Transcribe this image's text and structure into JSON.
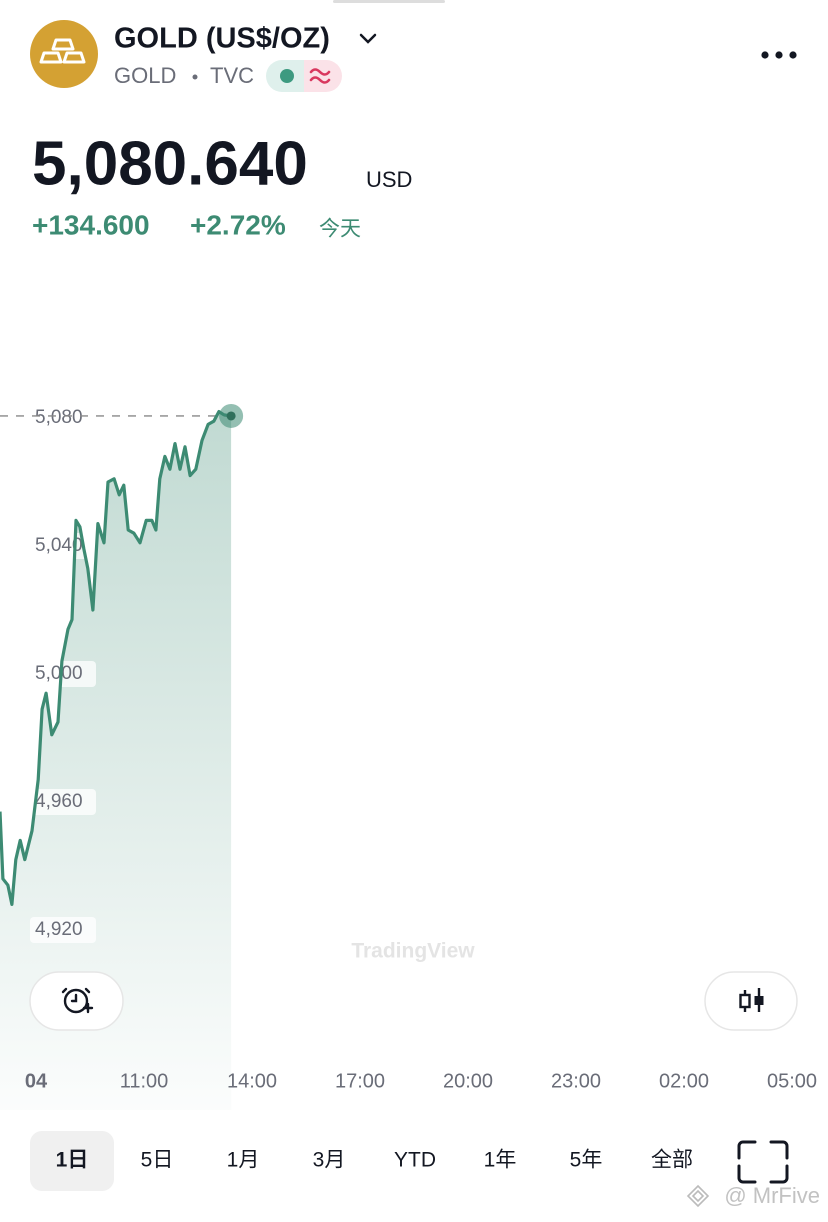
{
  "header": {
    "title": "GOLD (US$/OZ)",
    "symbol": "GOLD",
    "source": "TVC"
  },
  "quote": {
    "price": "5,080.640",
    "currency": "USD",
    "change": "+134.600",
    "change_percent": "+2.72%",
    "period": "今天"
  },
  "chart_data": {
    "type": "line",
    "color": "#3d8b73",
    "x": [
      7,
      7.08,
      7.22,
      7.33,
      7.44,
      7.56,
      7.69,
      7.89,
      8.06,
      8.17,
      8.28,
      8.44,
      8.61,
      8.72,
      8.89,
      9,
      9.11,
      9.22,
      9.33,
      9.44,
      9.58,
      9.72,
      9.89,
      10,
      10.17,
      10.31,
      10.44,
      10.56,
      10.72,
      10.89,
      11.06,
      11.22,
      11.33,
      11.44,
      11.58,
      11.72,
      11.86,
      12,
      12.14,
      12.28,
      12.44,
      12.61,
      12.78,
      12.94,
      13.08,
      13.22,
      13.42
    ],
    "values": [
      4957,
      4936,
      4934,
      4928,
      4942,
      4948,
      4942,
      4951,
      4967,
      4989,
      4994,
      4981,
      4985,
      5004,
      5014,
      5017,
      5048,
      5046,
      5039,
      5033,
      5020,
      5047,
      5041,
      5060,
      5061,
      5056,
      5059,
      5045,
      5044,
      5041,
      5048,
      5048,
      5045,
      5061,
      5068,
      5064,
      5072,
      5064,
      5071,
      5062,
      5064,
      5073,
      5078,
      5079,
      5082,
      5081,
      5080.64
    ],
    "xlim": [
      7,
      30
    ],
    "xticks": [
      {
        "value": 8,
        "label": "04"
      },
      {
        "value": 11,
        "label": "11:00"
      },
      {
        "value": 14,
        "label": "14:00"
      },
      {
        "value": 17,
        "label": "17:00"
      },
      {
        "value": 20,
        "label": "20:00"
      },
      {
        "value": 23,
        "label": "23:00"
      },
      {
        "value": 26,
        "label": "02:00"
      },
      {
        "value": 29,
        "label": "05:00"
      }
    ],
    "ylim": [
      4880,
      5130
    ],
    "yticks": [
      {
        "value": 4920,
        "label": "4,920"
      },
      {
        "value": 4960,
        "label": "4,960"
      },
      {
        "value": 5000,
        "label": "5,000"
      },
      {
        "value": 5040,
        "label": "5,040"
      },
      {
        "value": 5080,
        "label": "5,080"
      }
    ],
    "grid": false
  },
  "watermark": "TradingView",
  "timeframes": [
    "1日",
    "5日",
    "1月",
    "3月",
    "YTD",
    "1年",
    "5年",
    "全部"
  ],
  "footer": {
    "credit": "@ MrFive"
  }
}
